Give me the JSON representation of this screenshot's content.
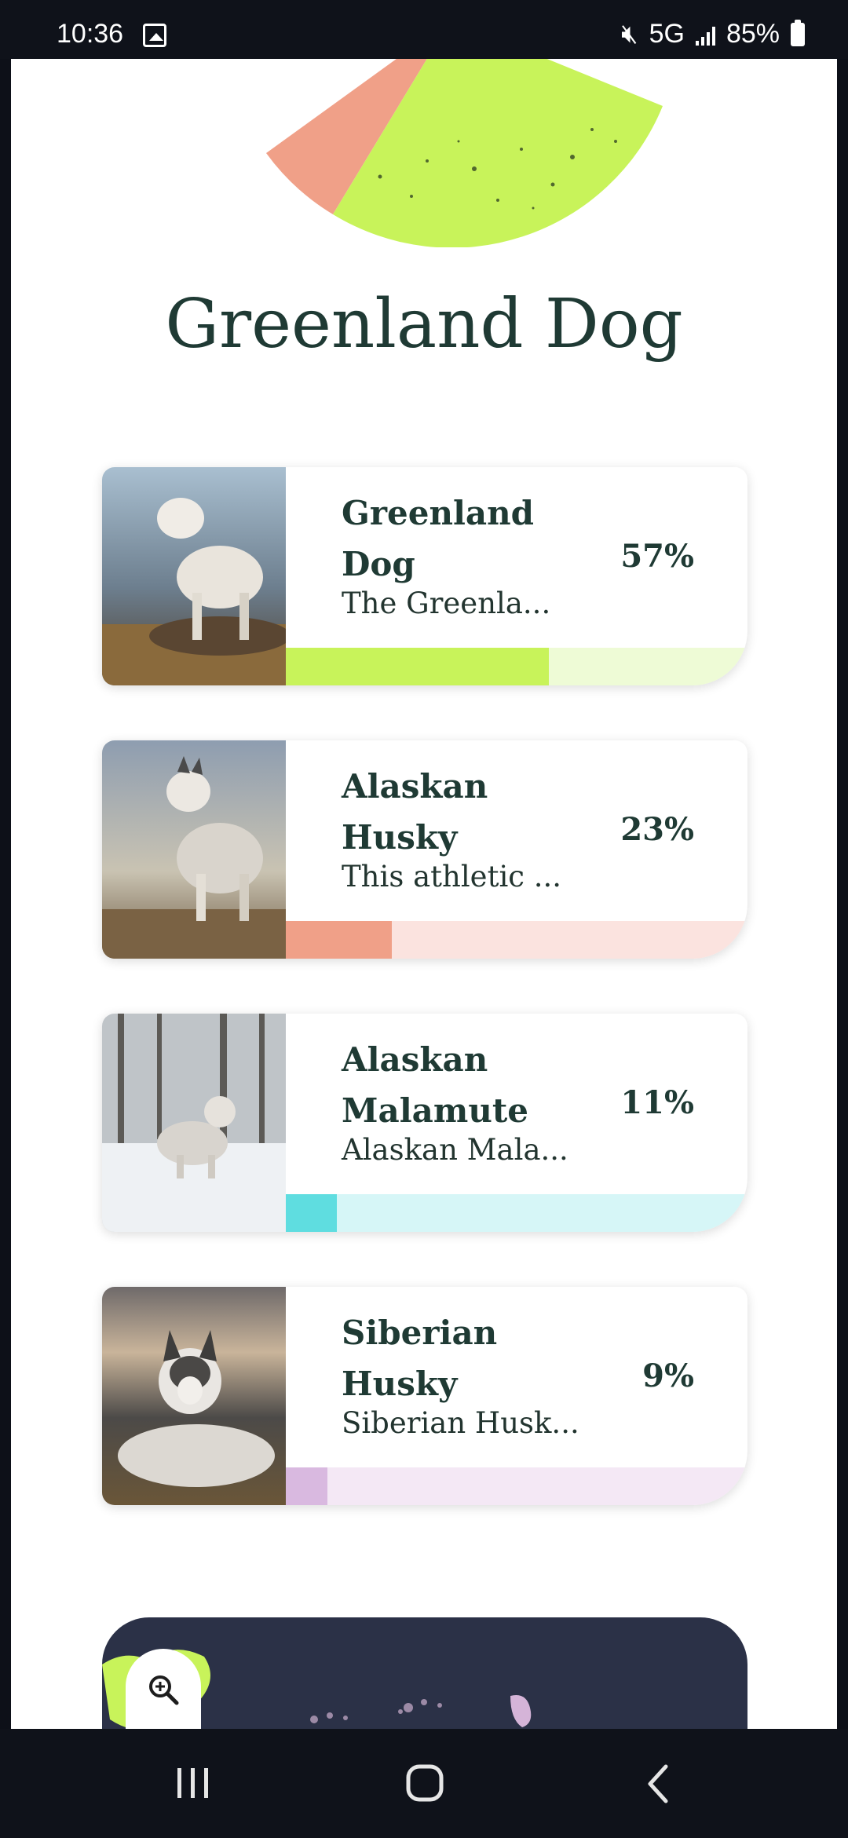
{
  "status_bar": {
    "time": "10:36",
    "network": "5G",
    "battery": "85%",
    "icons": [
      "image-icon",
      "mute-icon",
      "signal-icon",
      "battery-icon"
    ]
  },
  "page": {
    "title": "Greenland Dog"
  },
  "results": [
    {
      "name_line1": "Greenland",
      "name_line2": "Dog",
      "description": "The Greenla...",
      "percent": "57%",
      "fraction": 0.57,
      "accent": "#c8f35a",
      "track": "#eefbd6"
    },
    {
      "name_line1": "Alaskan",
      "name_line2": "Husky",
      "description": "This athletic ...",
      "percent": "23%",
      "fraction": 0.23,
      "accent": "#f0a088",
      "track": "#fbe3df"
    },
    {
      "name_line1": "Alaskan",
      "name_line2": "Malamute",
      "description": "Alaskan Mala...",
      "percent": "11%",
      "fraction": 0.11,
      "accent": "#5fdde0",
      "track": "#d6f6f7"
    },
    {
      "name_line1": "Siberian",
      "name_line2": "Husky",
      "description": "Siberian Husk...",
      "percent": "9%",
      "fraction": 0.09,
      "accent": "#d9b9e0",
      "track": "#f4e8f5"
    }
  ],
  "colors": {
    "title": "#1f3a34",
    "map_panel": "#2b3147",
    "nav_bar": "#0f121a"
  },
  "nav": {
    "items": [
      "recents-icon",
      "home-icon",
      "back-icon"
    ]
  }
}
